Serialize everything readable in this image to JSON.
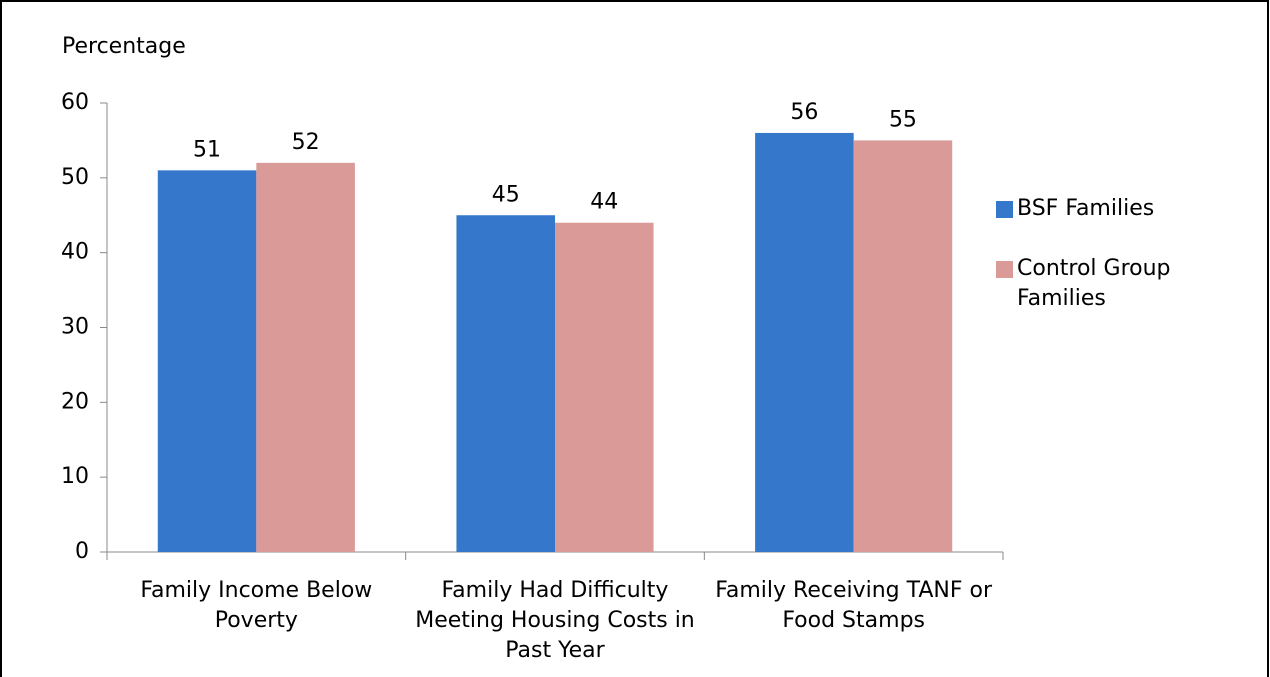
{
  "chart_data": {
    "type": "bar",
    "y_axis_label": "Percentage",
    "categories": [
      "Family Income Below Poverty",
      "Family Had Difficulty Meeting Housing Costs in Past Year",
      "Family Receiving TANF or Food Stamps"
    ],
    "series": [
      {
        "name": "BSF Families",
        "color": "#3477cb",
        "values": [
          51,
          45,
          56
        ]
      },
      {
        "name": "Control Group Families",
        "color": "#d99a98",
        "values": [
          52,
          44,
          55
        ]
      }
    ],
    "ylim": [
      0,
      60
    ],
    "yticks": [
      0,
      10,
      20,
      30,
      40,
      50,
      60
    ],
    "grid": false,
    "legend": "right"
  }
}
